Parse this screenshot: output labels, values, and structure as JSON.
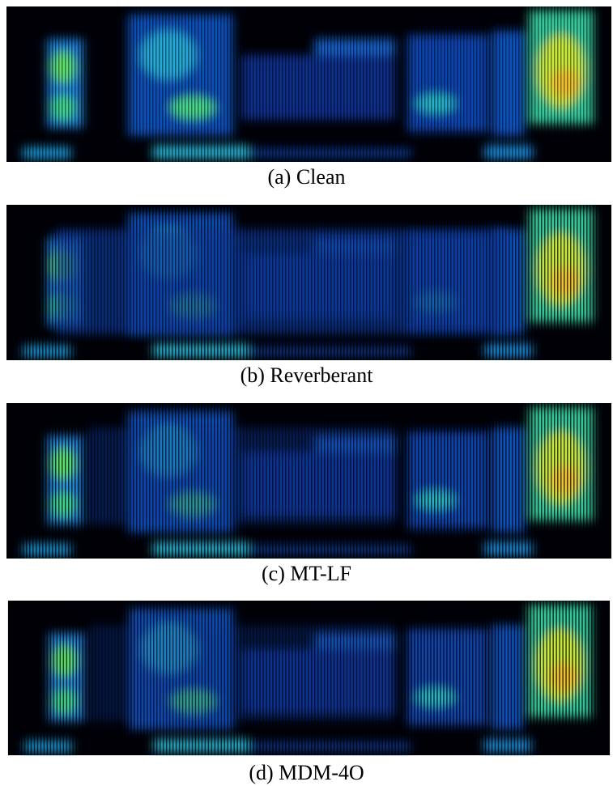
{
  "panels": [
    {
      "caption": "(a) Clean"
    },
    {
      "caption": "(b) Reverberant"
    },
    {
      "caption": "(c) MT-LF"
    },
    {
      "caption": "(d) MDM-4O"
    }
  ]
}
